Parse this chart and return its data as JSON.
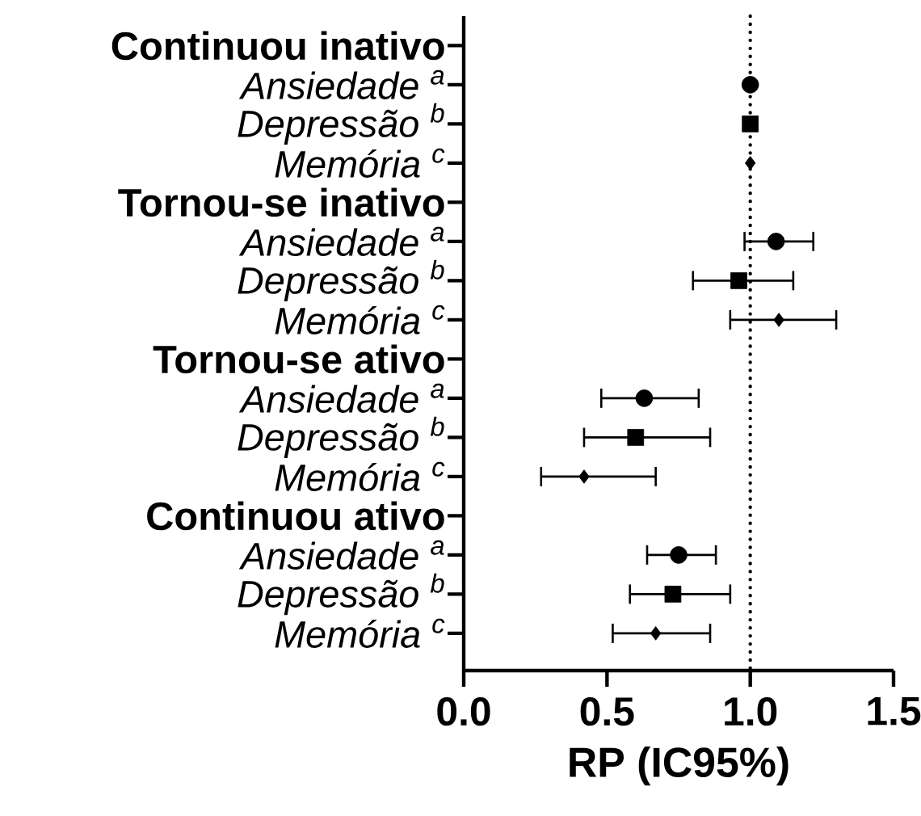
{
  "chart_data": {
    "type": "scatter",
    "orientation": "horizontal",
    "xlabel": "RP (IC95%)",
    "categories": [
      "Continuou inativo",
      "Ansiedade $^{a}$",
      "Depressão $^{b}$",
      "Memória $^{c}$",
      "Tornou-se inativo",
      "Ansiedade $^{a}$",
      "Depressão $^{b}$",
      "Memória $^{c}$",
      "Tornou-se ativo",
      "Ansiedade $^{a}$",
      "Depressão $^{b}$",
      "Memória $^{c}$",
      "Continuou ativo",
      "Ansiedade $^{a}$",
      "Depressão $^{b}$",
      "Memória $^{c}$"
    ],
    "series": [
      {
        "color": "#000000",
        "marker": "circle",
        "values": [
          null,
          1.0,
          null,
          null,
          null,
          1.09,
          null,
          null,
          null,
          0.63,
          null,
          null,
          null,
          0.75,
          null,
          null
        ],
        "errors": [
          null,
          null,
          null,
          null,
          null,
          [
            0.98,
            1.22
          ],
          null,
          null,
          null,
          [
            0.48,
            0.82
          ],
          null,
          null,
          null,
          [
            0.64,
            0.88
          ],
          null,
          null
        ]
      },
      {
        "color": "#000000",
        "marker": "square",
        "values": [
          null,
          null,
          1.0,
          null,
          null,
          null,
          0.96,
          null,
          null,
          null,
          0.6,
          null,
          null,
          null,
          0.73,
          null
        ],
        "errors": [
          null,
          null,
          null,
          null,
          null,
          null,
          [
            0.8,
            1.15
          ],
          null,
          null,
          null,
          [
            0.42,
            0.86
          ],
          null,
          null,
          null,
          [
            0.58,
            0.93
          ],
          null
        ]
      },
      {
        "color": "#000000",
        "marker": "diamond",
        "values": [
          null,
          null,
          null,
          1.0,
          null,
          null,
          null,
          1.1,
          null,
          null,
          null,
          0.42,
          null,
          null,
          null,
          0.67
        ],
        "errors": [
          null,
          null,
          null,
          null,
          null,
          null,
          null,
          [
            0.93,
            1.3
          ],
          null,
          null,
          null,
          [
            0.27,
            0.67
          ],
          null,
          null,
          null,
          [
            0.52,
            0.86
          ]
        ]
      }
    ],
    "xlim": [
      0,
      1.5
    ],
    "xticks": [
      {
        "value": 0,
        "label": "0.0"
      },
      {
        "value": 0.5,
        "label": "0.5"
      },
      {
        "value": 1,
        "label": "1.0"
      },
      {
        "value": 1.5,
        "label": "1.5"
      }
    ],
    "ref_lines": [
      {
        "axis": "x",
        "value": 1,
        "line_style": "dotted"
      }
    ]
  }
}
